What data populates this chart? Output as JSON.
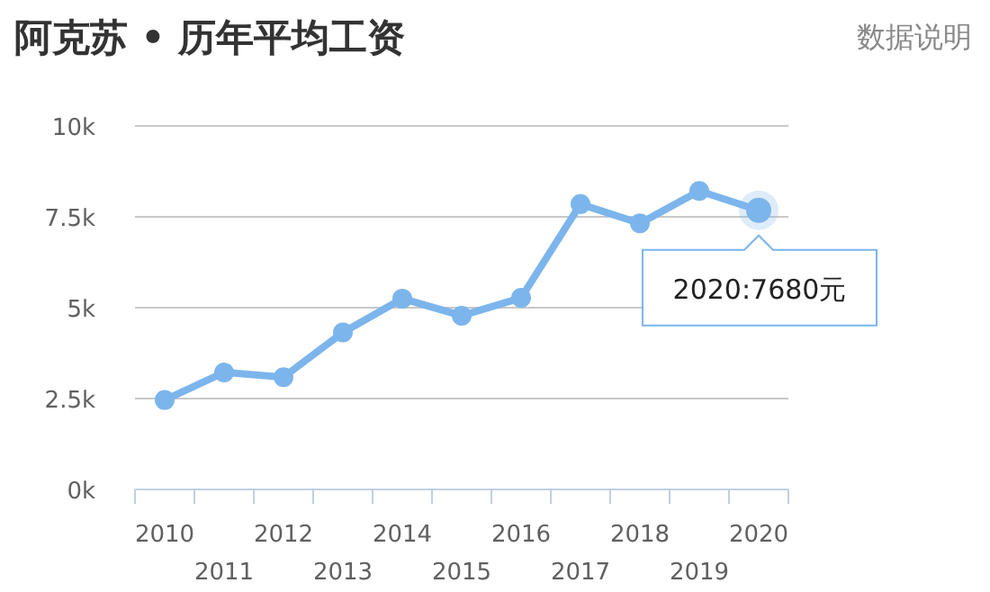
{
  "chart_data": {
    "type": "line",
    "title": "阿克苏 • 历年平均工资",
    "categories": [
      "2010",
      "2011",
      "2012",
      "2013",
      "2014",
      "2015",
      "2016",
      "2017",
      "2018",
      "2019",
      "2020"
    ],
    "series": [
      {
        "color": "#7cb5ec",
        "values": [
          2460,
          3220,
          3090,
          4320,
          5250,
          4780,
          5270,
          7850,
          7320,
          8210,
          7680
        ]
      }
    ],
    "ylim": [
      0,
      10000
    ],
    "yticks": [
      {
        "value": 0,
        "label": "0k"
      },
      {
        "value": 2500,
        "label": "2.5k"
      },
      {
        "value": 5000,
        "label": "5k"
      },
      {
        "value": 7500,
        "label": "7.5k"
      },
      {
        "value": 10000,
        "label": "10k"
      }
    ],
    "grid": "y",
    "marker": "circle",
    "line_style": "solid",
    "annotations": [
      "数据说明",
      {
        "text": "2020:7680元",
        "x": "2020",
        "y": 7680
      }
    ]
  }
}
